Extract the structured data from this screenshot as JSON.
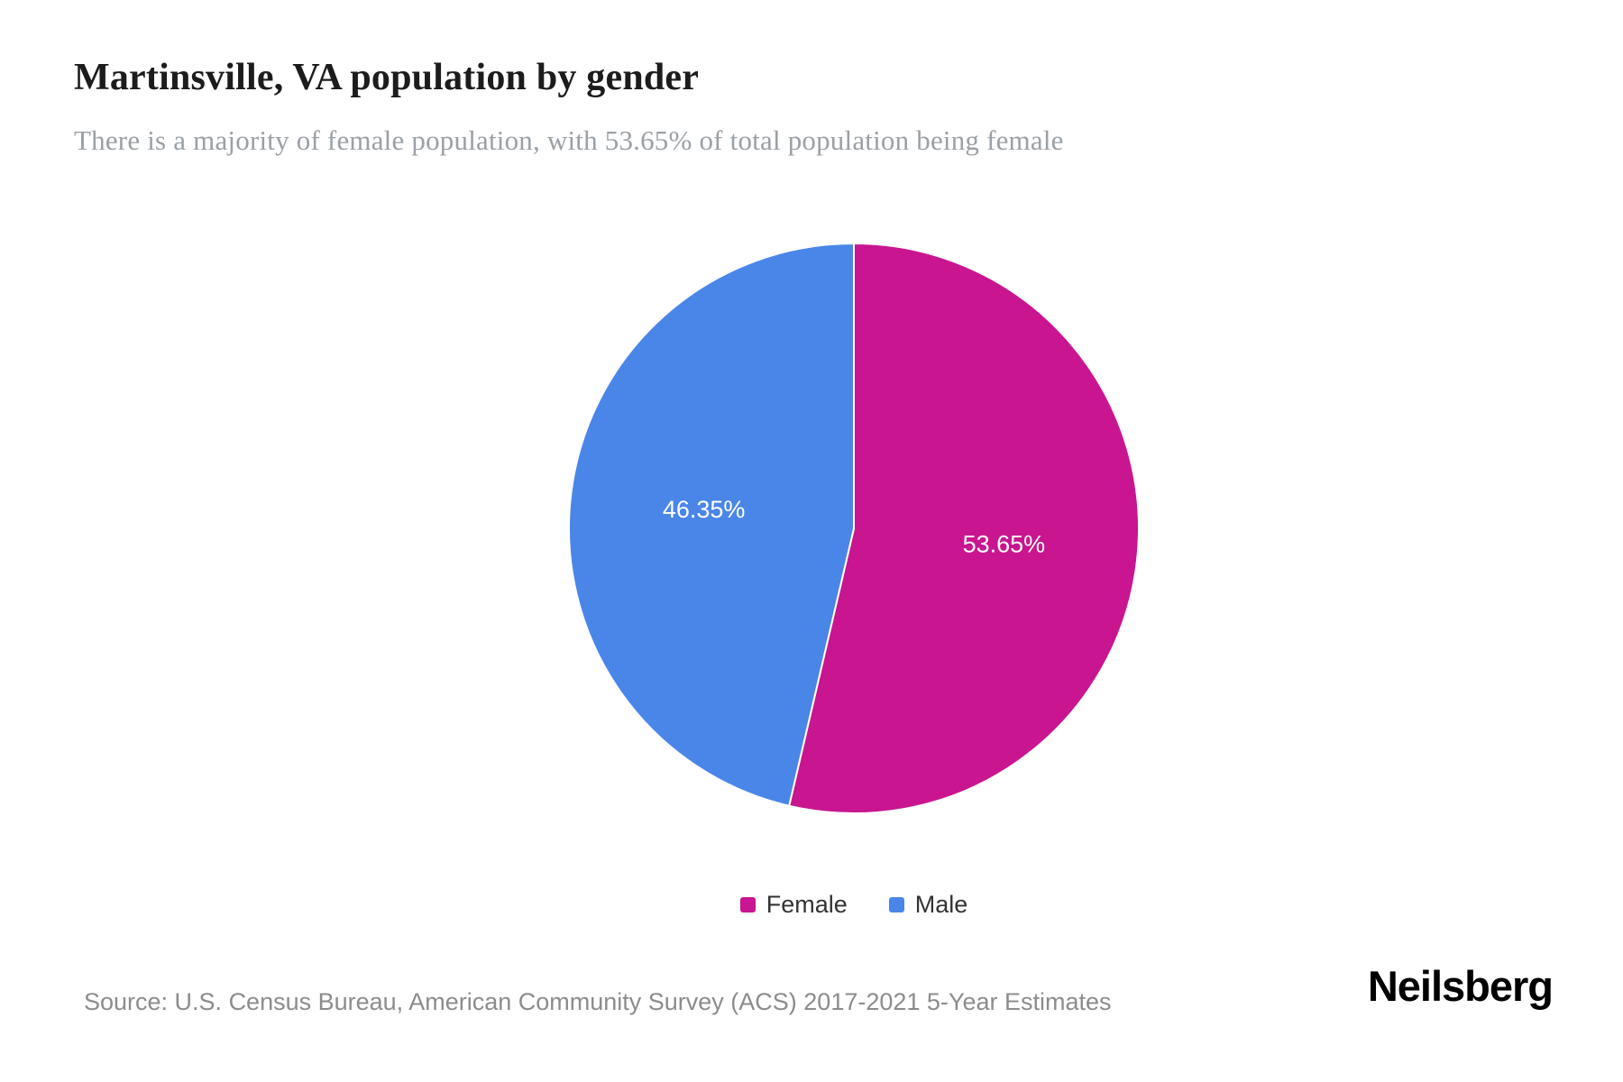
{
  "header": {
    "title": "Martinsville, VA population by gender",
    "subtitle": "There is a majority of female population, with 53.65% of total population being female"
  },
  "chart_data": {
    "type": "pie",
    "title": "Martinsville, VA population by gender",
    "start_angle_deg": 0,
    "direction": "clockwise",
    "legend_position": "bottom",
    "data_label_color": "#ffffff",
    "slices": [
      {
        "label": "Female",
        "value": 53.65,
        "display": "53.65%",
        "color": "#c9158f"
      },
      {
        "label": "Male",
        "value": 46.35,
        "display": "46.35%",
        "color": "#4a86e8"
      }
    ]
  },
  "legend": {
    "items": [
      {
        "label": "Female",
        "color": "#c9158f"
      },
      {
        "label": "Male",
        "color": "#4a86e8"
      }
    ]
  },
  "footer": {
    "source": "Source: U.S. Census Bureau, American Community Survey (ACS) 2017-2021 5-Year Estimates",
    "brand": "Neilsberg"
  }
}
